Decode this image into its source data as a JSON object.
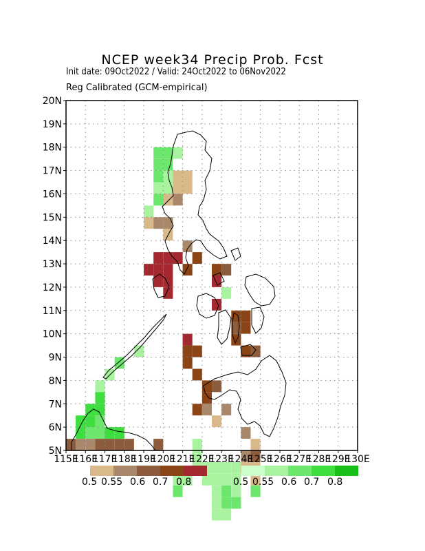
{
  "title": "NCEP week34 Precip Prob. Fcst",
  "subtitle_dates": "Init date: 09Oct2022 / Valid: 24Oct2022 to 06Nov2022",
  "subtitle_method": "Reg Calibrated (GCM-empirical)",
  "colors": {
    "dry": [
      "#d9b88a",
      "#a8876b",
      "#8c5c3c",
      "#8a4415",
      "#a3282f"
    ],
    "wet": [
      "#ccffcc",
      "#a8f2a0",
      "#6ce66c",
      "#3dde3d",
      "#16c016"
    ]
  },
  "legend": {
    "dry_labels": [
      "0.5",
      "0.55",
      "0.6",
      "0.7",
      "0.8"
    ],
    "wet_labels": [
      "0.5",
      "0.55",
      "0.6",
      "0.7",
      "0.8"
    ]
  },
  "chart_data": {
    "type": "heatmap",
    "xlim": [
      115,
      130
    ],
    "ylim": [
      5,
      20
    ],
    "x_ticks": [
      "115E",
      "116E",
      "117E",
      "118E",
      "119E",
      "120E",
      "121E",
      "122E",
      "123E",
      "124E",
      "125E",
      "126E",
      "127E",
      "128E",
      "129E",
      "130E"
    ],
    "y_ticks": [
      "5N",
      "6N",
      "7N",
      "8N",
      "9N",
      "10N",
      "11N",
      "12N",
      "13N",
      "14N",
      "15N",
      "16N",
      "17N",
      "18N",
      "19N",
      "20N"
    ],
    "grid": true,
    "cell_size_deg": 0.5,
    "cells": [
      {
        "lon": 119.5,
        "lat": 17.5,
        "cat": "wet",
        "level": 2
      },
      {
        "lon": 120.0,
        "lat": 17.5,
        "cat": "wet",
        "level": 2
      },
      {
        "lon": 120.5,
        "lat": 17.5,
        "cat": "wet",
        "level": 1
      },
      {
        "lon": 119.5,
        "lat": 17.0,
        "cat": "wet",
        "level": 2
      },
      {
        "lon": 120.0,
        "lat": 17.0,
        "cat": "wet",
        "level": 2
      },
      {
        "lon": 120.5,
        "lat": 16.5,
        "cat": "dry",
        "level": 0
      },
      {
        "lon": 121.0,
        "lat": 16.5,
        "cat": "dry",
        "level": 0
      },
      {
        "lon": 120.5,
        "lat": 16.0,
        "cat": "dry",
        "level": 0
      },
      {
        "lon": 121.0,
        "lat": 16.0,
        "cat": "dry",
        "level": 0
      },
      {
        "lon": 120.0,
        "lat": 16.5,
        "cat": "wet",
        "level": 1
      },
      {
        "lon": 119.5,
        "lat": 16.5,
        "cat": "wet",
        "level": 2
      },
      {
        "lon": 119.5,
        "lat": 16.0,
        "cat": "wet",
        "level": 1
      },
      {
        "lon": 120.0,
        "lat": 16.0,
        "cat": "wet",
        "level": 1
      },
      {
        "lon": 120.5,
        "lat": 15.5,
        "cat": "dry",
        "level": 1
      },
      {
        "lon": 120.0,
        "lat": 15.5,
        "cat": "dry",
        "level": 0
      },
      {
        "lon": 119.5,
        "lat": 15.5,
        "cat": "wet",
        "level": 2
      },
      {
        "lon": 119.0,
        "lat": 15.0,
        "cat": "wet",
        "level": 1
      },
      {
        "lon": 119.0,
        "lat": 14.5,
        "cat": "dry",
        "level": 0
      },
      {
        "lon": 119.5,
        "lat": 14.5,
        "cat": "dry",
        "level": 1
      },
      {
        "lon": 120.0,
        "lat": 14.5,
        "cat": "dry",
        "level": 1
      },
      {
        "lon": 120.0,
        "lat": 14.0,
        "cat": "dry",
        "level": 0
      },
      {
        "lon": 121.0,
        "lat": 13.5,
        "cat": "dry",
        "level": 1
      },
      {
        "lon": 119.5,
        "lat": 13.0,
        "cat": "dry_r",
        "level": 4
      },
      {
        "lon": 120.0,
        "lat": 13.0,
        "cat": "dry_r",
        "level": 4
      },
      {
        "lon": 120.5,
        "lat": 13.0,
        "cat": "dry_r",
        "level": 4
      },
      {
        "lon": 121.5,
        "lat": 13.0,
        "cat": "dry",
        "level": 3
      },
      {
        "lon": 119.0,
        "lat": 12.5,
        "cat": "dry_r",
        "level": 4
      },
      {
        "lon": 119.5,
        "lat": 12.5,
        "cat": "dry_r",
        "level": 4
      },
      {
        "lon": 120.0,
        "lat": 12.5,
        "cat": "dry_r",
        "level": 4
      },
      {
        "lon": 121.0,
        "lat": 12.5,
        "cat": "dry",
        "level": 3
      },
      {
        "lon": 122.5,
        "lat": 12.5,
        "cat": "dry",
        "level": 3
      },
      {
        "lon": 123.0,
        "lat": 12.5,
        "cat": "dry",
        "level": 2
      },
      {
        "lon": 119.5,
        "lat": 12.0,
        "cat": "dry_r",
        "level": 4
      },
      {
        "lon": 120.0,
        "lat": 12.0,
        "cat": "dry_r",
        "level": 4
      },
      {
        "lon": 122.5,
        "lat": 12.0,
        "cat": "dry_r",
        "level": 4
      },
      {
        "lon": 120.0,
        "lat": 11.5,
        "cat": "dry_r",
        "level": 4
      },
      {
        "lon": 123.0,
        "lat": 11.5,
        "cat": "wet",
        "level": 1
      },
      {
        "lon": 122.5,
        "lat": 11.0,
        "cat": "dry_r",
        "level": 4
      },
      {
        "lon": 123.5,
        "lat": 10.5,
        "cat": "dry",
        "level": 3
      },
      {
        "lon": 124.0,
        "lat": 10.5,
        "cat": "dry",
        "level": 3
      },
      {
        "lon": 123.5,
        "lat": 10.0,
        "cat": "dry",
        "level": 2
      },
      {
        "lon": 124.0,
        "lat": 10.0,
        "cat": "dry",
        "level": 3
      },
      {
        "lon": 121.0,
        "lat": 9.5,
        "cat": "dry_r",
        "level": 4
      },
      {
        "lon": 121.0,
        "lat": 9.0,
        "cat": "dry",
        "level": 3
      },
      {
        "lon": 121.5,
        "lat": 9.0,
        "cat": "dry",
        "level": 3
      },
      {
        "lon": 121.0,
        "lat": 8.5,
        "cat": "dry",
        "level": 3
      },
      {
        "lon": 123.5,
        "lat": 9.5,
        "cat": "dry",
        "level": 3
      },
      {
        "lon": 124.0,
        "lat": 9.0,
        "cat": "dry",
        "level": 3
      },
      {
        "lon": 124.5,
        "lat": 9.0,
        "cat": "dry",
        "level": 2
      },
      {
        "lon": 121.5,
        "lat": 8.0,
        "cat": "dry",
        "level": 3
      },
      {
        "lon": 122.0,
        "lat": 7.5,
        "cat": "dry",
        "level": 3
      },
      {
        "lon": 122.5,
        "lat": 7.5,
        "cat": "dry",
        "level": 2
      },
      {
        "lon": 122.0,
        "lat": 7.0,
        "cat": "dry",
        "level": 3
      },
      {
        "lon": 121.5,
        "lat": 6.5,
        "cat": "dry",
        "level": 3
      },
      {
        "lon": 122.0,
        "lat": 6.5,
        "cat": "dry",
        "level": 1
      },
      {
        "lon": 122.5,
        "lat": 6.0,
        "cat": "dry",
        "level": 0
      },
      {
        "lon": 123.0,
        "lat": 6.5,
        "cat": "dry",
        "level": 1
      },
      {
        "lon": 124.0,
        "lat": 5.5,
        "cat": "dry",
        "level": 1
      },
      {
        "lon": 124.5,
        "lat": 5.0,
        "cat": "dry",
        "level": 0
      },
      {
        "lon": 124.5,
        "lat": 4.5,
        "cat": "dry",
        "level": 2
      },
      {
        "lon": 124.0,
        "lat": 4.5,
        "cat": "dry",
        "level": 1
      },
      {
        "lon": 124.5,
        "lat": 4.0,
        "cat": "dry",
        "level": 0
      },
      {
        "lon": 124.0,
        "lat": 4.0,
        "cat": "dry",
        "level": 0
      },
      {
        "lon": 124.5,
        "lat": 3.5,
        "cat": "dry",
        "level": 0
      },
      {
        "lon": 124.5,
        "lat": 3.0,
        "cat": "wet",
        "level": 2
      },
      {
        "lon": 121.5,
        "lat": 5.0,
        "cat": "wet",
        "level": 1
      },
      {
        "lon": 121.5,
        "lat": 4.5,
        "cat": "wet",
        "level": 1
      },
      {
        "lon": 121.5,
        "lat": 4.0,
        "cat": "wet",
        "level": 1
      },
      {
        "lon": 122.0,
        "lat": 4.0,
        "cat": "wet",
        "level": 1
      },
      {
        "lon": 122.5,
        "lat": 4.0,
        "cat": "wet",
        "level": 1
      },
      {
        "lon": 123.0,
        "lat": 4.0,
        "cat": "wet",
        "level": 1
      },
      {
        "lon": 123.5,
        "lat": 4.0,
        "cat": "wet",
        "level": 1
      },
      {
        "lon": 121.0,
        "lat": 3.5,
        "cat": "wet",
        "level": 1
      },
      {
        "lon": 122.0,
        "lat": 3.5,
        "cat": "wet",
        "level": 1
      },
      {
        "lon": 122.5,
        "lat": 3.5,
        "cat": "wet",
        "level": 1
      },
      {
        "lon": 123.0,
        "lat": 3.5,
        "cat": "wet",
        "level": 1
      },
      {
        "lon": 123.5,
        "lat": 3.5,
        "cat": "wet",
        "level": 1
      },
      {
        "lon": 122.5,
        "lat": 3.0,
        "cat": "wet",
        "level": 1
      },
      {
        "lon": 123.0,
        "lat": 3.0,
        "cat": "wet",
        "level": 2
      },
      {
        "lon": 123.5,
        "lat": 3.0,
        "cat": "wet",
        "level": 1
      },
      {
        "lon": 120.5,
        "lat": 3.0,
        "cat": "wet",
        "level": 2
      },
      {
        "lon": 120.5,
        "lat": 3.5,
        "cat": "wet",
        "level": 1
      },
      {
        "lon": 123.0,
        "lat": 2.5,
        "cat": "wet",
        "level": 2
      },
      {
        "lon": 123.5,
        "lat": 2.5,
        "cat": "wet",
        "level": 2
      },
      {
        "lon": 122.5,
        "lat": 2.5,
        "cat": "wet",
        "level": 1
      },
      {
        "lon": 122.5,
        "lat": 2.0,
        "cat": "wet",
        "level": 1
      },
      {
        "lon": 123.0,
        "lat": 2.0,
        "cat": "wet",
        "level": 1
      },
      {
        "lon": 118.5,
        "lat": 9.0,
        "cat": "wet",
        "level": 1
      },
      {
        "lon": 117.5,
        "lat": 8.5,
        "cat": "wet",
        "level": 2
      },
      {
        "lon": 117.0,
        "lat": 8.0,
        "cat": "wet",
        "level": 1
      },
      {
        "lon": 116.5,
        "lat": 7.5,
        "cat": "wet",
        "level": 1
      },
      {
        "lon": 116.5,
        "lat": 7.0,
        "cat": "wet",
        "level": 3
      },
      {
        "lon": 116.0,
        "lat": 6.5,
        "cat": "wet",
        "level": 3
      },
      {
        "lon": 116.5,
        "lat": 6.5,
        "cat": "wet",
        "level": 3
      },
      {
        "lon": 115.5,
        "lat": 6.0,
        "cat": "wet",
        "level": 3
      },
      {
        "lon": 116.0,
        "lat": 6.0,
        "cat": "wet",
        "level": 3
      },
      {
        "lon": 116.5,
        "lat": 6.0,
        "cat": "wet",
        "level": 2
      },
      {
        "lon": 115.5,
        "lat": 5.5,
        "cat": "wet",
        "level": 3
      },
      {
        "lon": 116.0,
        "lat": 5.5,
        "cat": "wet",
        "level": 2
      },
      {
        "lon": 116.5,
        "lat": 5.5,
        "cat": "wet",
        "level": 2
      },
      {
        "lon": 117.0,
        "lat": 5.5,
        "cat": "wet",
        "level": 3
      },
      {
        "lon": 117.5,
        "lat": 5.5,
        "cat": "wet",
        "level": 3
      },
      {
        "lon": 115.0,
        "lat": 5.0,
        "cat": "dry",
        "level": 2
      },
      {
        "lon": 115.5,
        "lat": 5.0,
        "cat": "dry",
        "level": 1
      },
      {
        "lon": 116.0,
        "lat": 5.0,
        "cat": "dry",
        "level": 1
      },
      {
        "lon": 116.5,
        "lat": 5.0,
        "cat": "dry",
        "level": 2
      },
      {
        "lon": 117.0,
        "lat": 5.0,
        "cat": "dry",
        "level": 2
      },
      {
        "lon": 117.5,
        "lat": 5.0,
        "cat": "dry",
        "level": 2
      },
      {
        "lon": 118.0,
        "lat": 5.0,
        "cat": "dry",
        "level": 2
      },
      {
        "lon": 119.5,
        "lat": 5.0,
        "cat": "dry",
        "level": 2
      }
    ]
  }
}
